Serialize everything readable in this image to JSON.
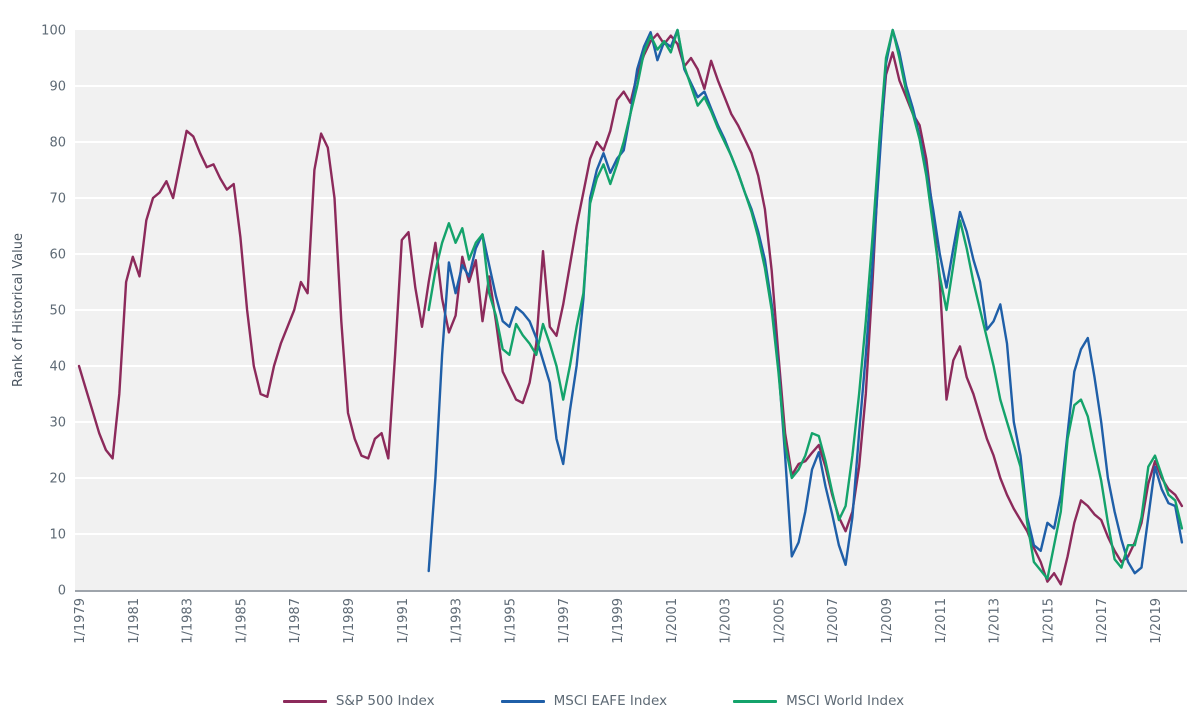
{
  "page": {
    "background": "#ffffff"
  },
  "chart_data": {
    "type": "line",
    "title": "",
    "xlabel": "",
    "ylabel": "Rank of Historical Value",
    "ylim": [
      0,
      100
    ],
    "grid": true,
    "legend_position": "bottom",
    "plot_style": {
      "plot_bg": "#F1F1F1",
      "grid_color": "#FFFFFF",
      "axis_line_color": "#9EA4AB",
      "tick_text_color": "#5E6A75"
    },
    "y_ticks": [
      0,
      10,
      20,
      30,
      40,
      50,
      60,
      70,
      80,
      90,
      100
    ],
    "x_tick_labels": [
      "1/1979",
      "1/1981",
      "1/1983",
      "1/1985",
      "1/1987",
      "1/1989",
      "1/1991",
      "1/1993",
      "1/1995",
      "1/1997",
      "1/1999",
      "1/2001",
      "1/2003",
      "1/2005",
      "1/2007",
      "1/2009",
      "1/2011",
      "1/2013",
      "1/2015",
      "1/2017",
      "1/2019"
    ],
    "x_tick_years": [
      1979,
      1981,
      1983,
      1985,
      1987,
      1989,
      1991,
      1993,
      1995,
      1997,
      1999,
      2001,
      2003,
      2005,
      2007,
      2009,
      2011,
      2013,
      2015,
      2017,
      2019
    ],
    "series": [
      {
        "name": "S&P 500 Index",
        "color": "#8C2A5B",
        "start_year": 1979.0,
        "step_years": 0.25,
        "values": [
          40,
          36,
          32,
          28,
          25,
          23.5,
          35,
          55,
          59.5,
          56,
          66,
          70,
          71,
          73,
          70,
          76,
          82,
          81,
          78,
          75.5,
          76,
          73.5,
          71.5,
          72.5,
          63,
          50,
          40,
          35,
          34.5,
          40,
          44,
          47,
          50,
          55,
          53,
          75,
          81.5,
          79,
          70,
          48,
          31.6,
          27,
          24,
          23.5,
          27,
          28,
          23.5,
          42,
          62.5,
          63.9,
          54,
          47,
          55,
          62,
          52,
          46,
          49,
          59.5,
          55,
          58.9,
          48,
          56,
          48,
          39,
          36.5,
          34,
          33.4,
          37,
          44,
          60.5,
          47,
          45.4,
          51,
          58,
          65,
          71,
          77,
          80,
          78.5,
          82,
          87.5,
          89,
          87,
          92,
          95.5,
          98,
          99.3,
          97.5,
          99,
          97.5,
          93.5,
          95,
          93,
          89.5,
          94.5,
          91,
          88,
          85,
          83,
          80.5,
          78,
          74,
          68,
          57,
          42,
          28,
          20.5,
          22.5,
          23,
          24.5,
          25.9,
          22,
          17,
          13,
          10.5,
          14,
          22,
          35,
          55,
          78,
          92,
          96,
          91,
          88,
          85,
          83,
          77,
          67,
          55,
          34,
          41,
          43.5,
          38,
          35,
          31,
          27,
          24,
          20,
          17,
          14.5,
          12.5,
          10.5,
          7.5,
          5,
          1.5,
          3,
          1,
          6,
          12,
          16,
          15,
          13.5,
          12.5,
          9.5,
          7,
          5,
          6,
          8.5,
          12,
          19,
          23,
          20,
          18,
          17,
          15
        ]
      },
      {
        "name": "MSCI EAFE Index",
        "color": "#1F5FA8",
        "start_year": 1992.0,
        "step_years": 0.25,
        "values": [
          3.4,
          20,
          42,
          58.5,
          53,
          58,
          56,
          61,
          63.5,
          58,
          52.5,
          48,
          47,
          50.5,
          49.5,
          48,
          45,
          41,
          37,
          27,
          22.5,
          32,
          40,
          52,
          70,
          75,
          78,
          74.5,
          77,
          78.5,
          85,
          93,
          97,
          99.6,
          94.6,
          97.9,
          97,
          100,
          93,
          90.5,
          88,
          89,
          86,
          83,
          80.5,
          77.5,
          74.5,
          71,
          68,
          64,
          59,
          51,
          40,
          24,
          6,
          8.5,
          14,
          21.5,
          24.6,
          18.5,
          13.5,
          8,
          4.5,
          13,
          28,
          42,
          58,
          76,
          94,
          100,
          96,
          90,
          86,
          81,
          75,
          68,
          60,
          54,
          61,
          67.5,
          64,
          59,
          55,
          46.5,
          48,
          51,
          44,
          30,
          24,
          13,
          8,
          7,
          12,
          11,
          17,
          28,
          39,
          43,
          45,
          38,
          30,
          20,
          14,
          9,
          5,
          3,
          4,
          13,
          22,
          18,
          15.5,
          15,
          8.5
        ]
      },
      {
        "name": "MSCI World Index",
        "color": "#14A36B",
        "start_year": 1992.0,
        "step_years": 0.25,
        "values": [
          50,
          57,
          62,
          65.5,
          62,
          64.6,
          59,
          62,
          63.5,
          53,
          49,
          43,
          42,
          47.5,
          45.5,
          44,
          42,
          47.5,
          44,
          40,
          34,
          40,
          47,
          53,
          69,
          73.5,
          76,
          72.5,
          76,
          80,
          85,
          90,
          96,
          99,
          96.5,
          98,
          96,
          100,
          93.5,
          90,
          86.5,
          88,
          85.5,
          82.5,
          80,
          77.5,
          74.5,
          71,
          67.5,
          63,
          57.5,
          50,
          39,
          26,
          20,
          21.5,
          24,
          28,
          27.5,
          23,
          17.5,
          12.5,
          15,
          24,
          35,
          48,
          63,
          80,
          95,
          100,
          95,
          89,
          85,
          80.5,
          74,
          65,
          56,
          50,
          58,
          66,
          61,
          55,
          50,
          45,
          40,
          34,
          30,
          26,
          22,
          12,
          5,
          3.5,
          2,
          8,
          14,
          27,
          33,
          34,
          31,
          25,
          19.5,
          12,
          5.5,
          4,
          8,
          8,
          13,
          22,
          24,
          20.5,
          17,
          16,
          11
        ]
      }
    ],
    "legend": {
      "entries": [
        "S&P 500 Index",
        "MSCI EAFE Index",
        "MSCI World Index"
      ]
    }
  }
}
